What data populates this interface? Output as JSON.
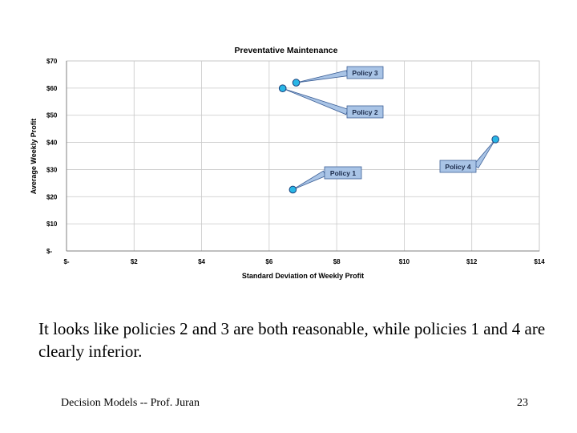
{
  "chart_data": {
    "type": "scatter",
    "title": "Preventative Maintenance",
    "xlabel": "Standard Deviation of Weekly Profit",
    "ylabel": "Average Weekly Profit",
    "xlim": [
      0,
      14
    ],
    "ylim": [
      0,
      70
    ],
    "x_ticks": [
      {
        "value": 0,
        "label": "$-"
      },
      {
        "value": 2,
        "label": "$2"
      },
      {
        "value": 4,
        "label": "$4"
      },
      {
        "value": 6,
        "label": "$6"
      },
      {
        "value": 8,
        "label": "$8"
      },
      {
        "value": 10,
        "label": "$10"
      },
      {
        "value": 12,
        "label": "$12"
      },
      {
        "value": 14,
        "label": "$14"
      }
    ],
    "y_ticks": [
      {
        "value": 0,
        "label": "$-"
      },
      {
        "value": 10,
        "label": "$10"
      },
      {
        "value": 20,
        "label": "$20"
      },
      {
        "value": 30,
        "label": "$30"
      },
      {
        "value": 40,
        "label": "$40"
      },
      {
        "value": 50,
        "label": "$50"
      },
      {
        "value": 60,
        "label": "$60"
      },
      {
        "value": 70,
        "label": "$70"
      }
    ],
    "grid": true,
    "points": [
      {
        "label": "Policy 1",
        "x": 6.7,
        "y": 22.6
      },
      {
        "label": "Policy 2",
        "x": 6.4,
        "y": 59.9
      },
      {
        "label": "Policy 3",
        "x": 6.8,
        "y": 62.0
      },
      {
        "label": "Policy 4",
        "x": 12.7,
        "y": 41.1
      }
    ],
    "colors": {
      "marker_fill": "#29b6e6",
      "marker_stroke": "#1a3f7a",
      "callout_fill": "#a9c4e6",
      "callout_stroke": "#3c5f96",
      "grid": "#c8c8c8"
    }
  },
  "body": {
    "text": "It looks like policies 2 and 3 are both reasonable, while policies 1 and 4 are clearly inferior."
  },
  "footer": {
    "left": "Decision Models  --   Prof. Juran",
    "page_number": "23"
  }
}
